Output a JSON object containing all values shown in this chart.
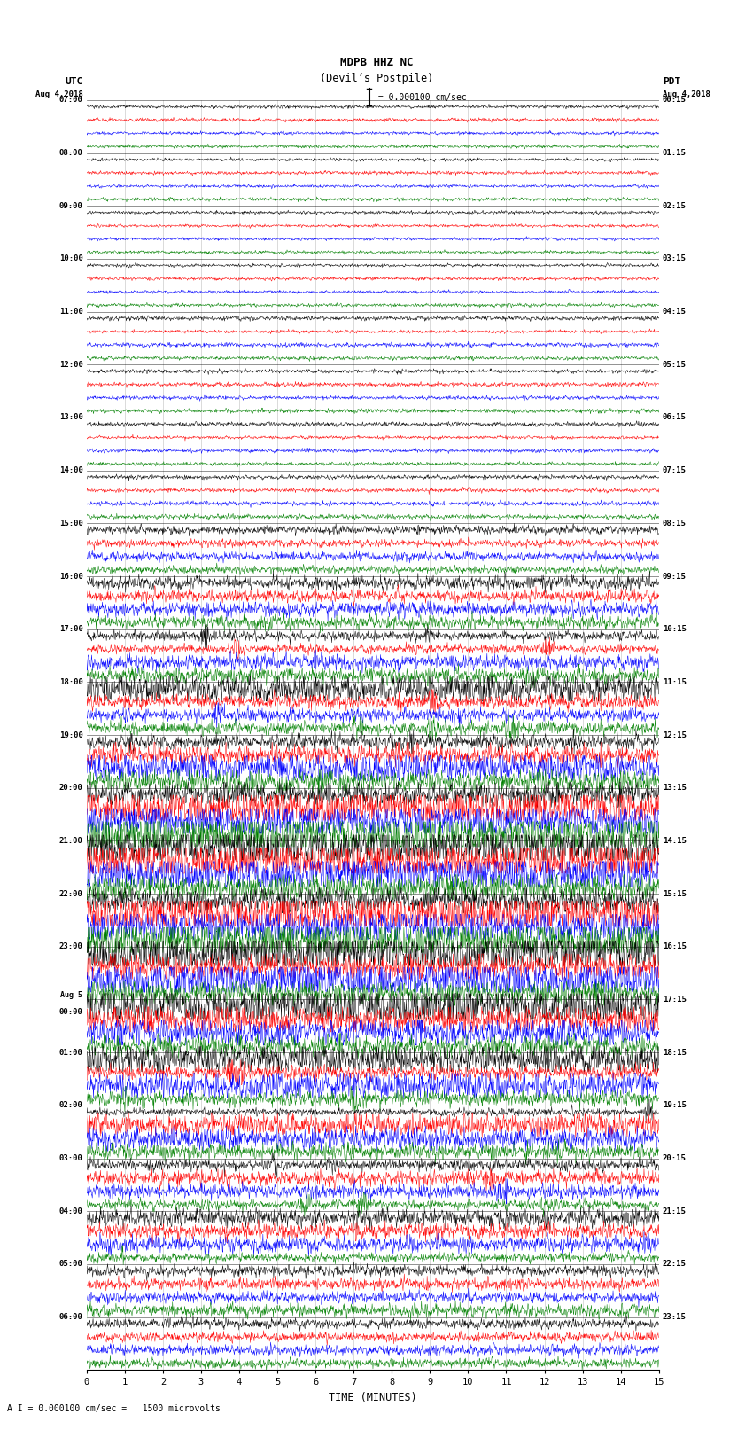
{
  "title_line1": "MDPB HHZ NC",
  "title_line2": "(Devil’s Postpile)",
  "scale_text": "I = 0.000100 cm/sec",
  "footnote": "A I = 0.000100 cm/sec =   1500 microvolts",
  "utc_labels": [
    "07:00",
    "08:00",
    "09:00",
    "10:00",
    "11:00",
    "12:00",
    "13:00",
    "14:00",
    "15:00",
    "16:00",
    "17:00",
    "18:00",
    "19:00",
    "20:00",
    "21:00",
    "22:00",
    "23:00",
    "Aug 5\n00:00",
    "01:00",
    "02:00",
    "03:00",
    "04:00",
    "05:00",
    "06:00"
  ],
  "pdt_labels": [
    "00:15",
    "01:15",
    "02:15",
    "03:15",
    "04:15",
    "05:15",
    "06:15",
    "07:15",
    "08:15",
    "09:15",
    "10:15",
    "11:15",
    "12:15",
    "13:15",
    "14:15",
    "15:15",
    "16:15",
    "17:15",
    "18:15",
    "19:15",
    "20:15",
    "21:15",
    "22:15",
    "23:15"
  ],
  "trace_colors": [
    "black",
    "red",
    "blue",
    "green"
  ],
  "n_hours": 24,
  "n_traces_per_hour": 4,
  "x_min": 0,
  "x_max": 15,
  "x_ticks": [
    0,
    1,
    2,
    3,
    4,
    5,
    6,
    7,
    8,
    9,
    10,
    11,
    12,
    13,
    14,
    15
  ],
  "background_color": "white",
  "fig_width": 8.5,
  "fig_height": 16.13,
  "dpi": 100,
  "amplitude_profile": [
    0.08,
    0.08,
    0.08,
    0.08,
    0.1,
    0.1,
    0.1,
    0.12,
    0.2,
    0.35,
    0.55,
    0.75,
    0.9,
    1.1,
    1.2,
    1.3,
    1.2,
    1.1,
    0.8,
    0.6,
    0.5,
    0.4,
    0.3,
    0.25
  ]
}
